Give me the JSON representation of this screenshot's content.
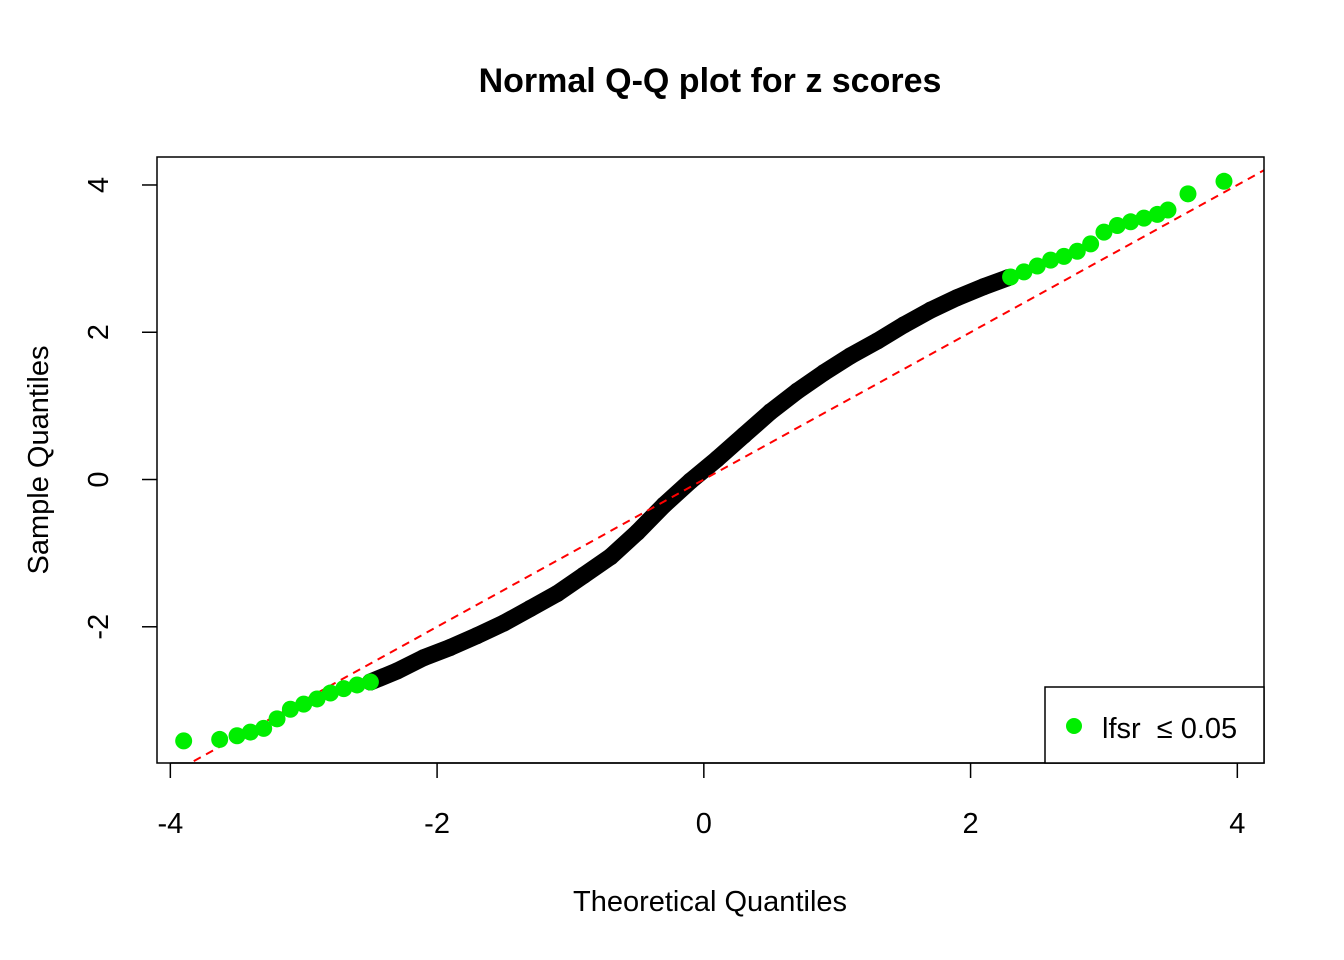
{
  "chart_data": {
    "type": "scatter",
    "title": "Normal Q-Q plot for z scores",
    "xlabel": "Theoretical Quantiles",
    "ylabel": "Sample Quantiles",
    "xlim": [
      -4.1,
      4.2
    ],
    "ylim": [
      -3.85,
      4.38
    ],
    "x_ticks": [
      -4,
      -2,
      0,
      2,
      4
    ],
    "y_ticks": [
      -2,
      0,
      2,
      4
    ],
    "x_tick_labels": [
      "-4",
      "-2",
      "0",
      "2",
      "4"
    ],
    "y_tick_labels": [
      "-2",
      "0",
      "2",
      "4"
    ],
    "grid": false,
    "reference_line": {
      "slope": 1.0,
      "intercept": 0.0,
      "color": "#ff0000",
      "style": "dashed"
    },
    "colors": {
      "significant": "#00ee00",
      "other": "#000000"
    },
    "legend": {
      "placement": "bottom-right",
      "label": "lfsr  ≤ 0.05"
    },
    "series": [
      {
        "color": "#000000",
        "x": [
          -2.5,
          -2.3,
          -2.1,
          -1.9,
          -1.7,
          -1.5,
          -1.3,
          -1.1,
          -0.9,
          -0.7,
          -0.5,
          -0.3,
          -0.1,
          0.1,
          0.3,
          0.5,
          0.7,
          0.9,
          1.1,
          1.3,
          1.5,
          1.7,
          1.9,
          2.1,
          2.28
        ],
        "y": [
          -2.75,
          -2.6,
          -2.42,
          -2.28,
          -2.12,
          -1.95,
          -1.75,
          -1.55,
          -1.3,
          -1.05,
          -0.72,
          -0.35,
          -0.02,
          0.28,
          0.6,
          0.92,
          1.2,
          1.45,
          1.68,
          1.88,
          2.1,
          2.3,
          2.47,
          2.62,
          2.74
        ]
      },
      {
        "color": "#00ee00",
        "x": [
          -3.9,
          -3.63,
          -3.5,
          -3.4,
          -3.3,
          -3.2,
          -3.1,
          -3.0,
          -2.9,
          -2.8,
          -2.7,
          -2.6,
          -2.5,
          2.3,
          2.4,
          2.5,
          2.6,
          2.7,
          2.8,
          2.9,
          3.0,
          3.1,
          3.2,
          3.3,
          3.4,
          3.48,
          3.63,
          3.9
        ],
        "y": [
          -3.55,
          -3.53,
          -3.48,
          -3.43,
          -3.38,
          -3.25,
          -3.12,
          -3.05,
          -2.98,
          -2.9,
          -2.84,
          -2.79,
          -2.75,
          2.75,
          2.82,
          2.9,
          2.98,
          3.03,
          3.1,
          3.2,
          3.36,
          3.45,
          3.5,
          3.55,
          3.6,
          3.66,
          3.88,
          4.05
        ]
      }
    ]
  }
}
